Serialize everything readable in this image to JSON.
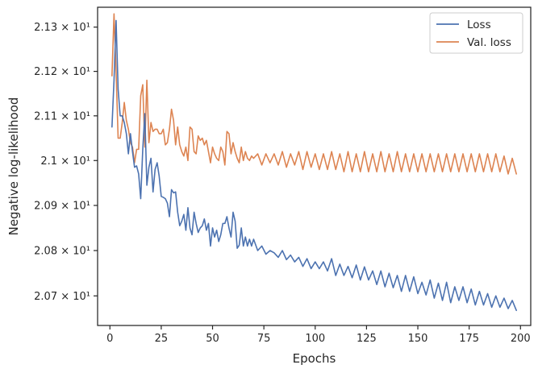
{
  "chart_data": {
    "type": "line",
    "xlabel": "Epochs",
    "ylabel": "Negative log-likelihood",
    "xlim": [
      -6,
      205
    ],
    "ylim": [
      20.635,
      21.345
    ],
    "yscale": "log",
    "grid": false,
    "legend_position": "top-right",
    "xticks": [
      {
        "value": 0,
        "label": "0"
      },
      {
        "value": 25,
        "label": "25"
      },
      {
        "value": 50,
        "label": "50"
      },
      {
        "value": 75,
        "label": "75"
      },
      {
        "value": 100,
        "label": "100"
      },
      {
        "value": 125,
        "label": "125"
      },
      {
        "value": 150,
        "label": "150"
      },
      {
        "value": 175,
        "label": "175"
      },
      {
        "value": 200,
        "label": "200"
      }
    ],
    "yticks": [
      {
        "value": 20.7,
        "label": "2.07 × 10¹"
      },
      {
        "value": 20.8,
        "label": "2.08 × 10¹"
      },
      {
        "value": 20.9,
        "label": "2.09 × 10¹"
      },
      {
        "value": 21.0,
        "label": "2.1 × 10¹"
      },
      {
        "value": 21.1,
        "label": "2.11 × 10¹"
      },
      {
        "value": 21.2,
        "label": "2.12 × 10¹"
      },
      {
        "value": 21.3,
        "label": "2.13 × 10¹"
      }
    ],
    "series": [
      {
        "name": "Loss",
        "color": "#4c72b0",
        "x": [
          1,
          2,
          3,
          4,
          5,
          6,
          7,
          8,
          9,
          10,
          11,
          12,
          13,
          14,
          15,
          16,
          17,
          18,
          19,
          20,
          21,
          22,
          23,
          24,
          25,
          26,
          27,
          28,
          29,
          30,
          31,
          32,
          33,
          34,
          35,
          36,
          37,
          38,
          39,
          40,
          41,
          42,
          43,
          44,
          45,
          46,
          47,
          48,
          49,
          50,
          51,
          52,
          53,
          54,
          55,
          56,
          57,
          58,
          59,
          60,
          61,
          62,
          63,
          64,
          65,
          66,
          67,
          68,
          69,
          70,
          72,
          74,
          76,
          78,
          80,
          82,
          84,
          86,
          88,
          90,
          92,
          94,
          96,
          98,
          100,
          102,
          104,
          106,
          108,
          110,
          112,
          114,
          116,
          118,
          120,
          122,
          124,
          126,
          128,
          130,
          132,
          134,
          136,
          138,
          140,
          142,
          144,
          146,
          148,
          150,
          152,
          154,
          156,
          158,
          160,
          162,
          164,
          166,
          168,
          170,
          172,
          174,
          176,
          178,
          180,
          182,
          184,
          186,
          188,
          190,
          192,
          194,
          196,
          198
        ],
        "values": [
          21.075,
          21.18,
          21.315,
          21.16,
          21.1,
          21.1,
          21.085,
          21.06,
          21.015,
          21.06,
          21.02,
          20.985,
          20.988,
          20.97,
          20.915,
          21.025,
          21.105,
          20.945,
          20.985,
          21.005,
          20.93,
          20.98,
          20.995,
          20.965,
          20.92,
          20.918,
          20.915,
          20.905,
          20.875,
          20.935,
          20.928,
          20.93,
          20.885,
          20.855,
          20.865,
          20.88,
          20.845,
          20.895,
          20.85,
          20.835,
          20.885,
          20.86,
          20.84,
          20.85,
          20.855,
          20.87,
          20.845,
          20.86,
          20.81,
          20.85,
          20.83,
          20.845,
          20.82,
          20.835,
          20.86,
          20.86,
          20.875,
          20.85,
          20.83,
          20.885,
          20.865,
          20.805,
          20.812,
          20.85,
          20.81,
          20.83,
          20.81,
          20.825,
          20.81,
          20.825,
          20.8,
          20.81,
          20.792,
          20.8,
          20.795,
          20.785,
          20.8,
          20.78,
          20.79,
          20.775,
          20.785,
          20.765,
          20.782,
          20.76,
          20.775,
          20.76,
          20.775,
          20.755,
          20.782,
          20.745,
          20.77,
          20.745,
          20.765,
          20.74,
          20.768,
          20.735,
          20.764,
          20.735,
          20.755,
          20.725,
          20.755,
          20.72,
          20.75,
          20.718,
          20.745,
          20.71,
          20.745,
          20.71,
          20.742,
          20.705,
          20.73,
          20.702,
          20.735,
          20.695,
          20.728,
          20.69,
          20.73,
          20.685,
          20.72,
          20.69,
          20.72,
          20.685,
          20.715,
          20.68,
          20.71,
          20.68,
          20.705,
          20.675,
          20.7,
          20.675,
          20.695,
          20.672,
          20.69,
          20.668
        ]
      },
      {
        "name": "Val. loss",
        "color": "#dd8452",
        "x": [
          1,
          2,
          3,
          4,
          5,
          6,
          7,
          8,
          9,
          10,
          11,
          12,
          13,
          14,
          15,
          16,
          17,
          18,
          19,
          20,
          21,
          22,
          23,
          24,
          25,
          26,
          27,
          28,
          29,
          30,
          31,
          32,
          33,
          34,
          35,
          36,
          37,
          38,
          39,
          40,
          41,
          42,
          43,
          44,
          45,
          46,
          47,
          48,
          49,
          50,
          51,
          52,
          53,
          54,
          55,
          56,
          57,
          58,
          59,
          60,
          61,
          62,
          63,
          64,
          65,
          66,
          67,
          68,
          69,
          70,
          72,
          74,
          76,
          78,
          80,
          82,
          84,
          86,
          88,
          90,
          92,
          94,
          96,
          98,
          100,
          102,
          104,
          106,
          108,
          110,
          112,
          114,
          116,
          118,
          120,
          122,
          124,
          126,
          128,
          130,
          132,
          134,
          136,
          138,
          140,
          142,
          144,
          146,
          148,
          150,
          152,
          154,
          156,
          158,
          160,
          162,
          164,
          166,
          168,
          170,
          172,
          174,
          176,
          178,
          180,
          182,
          184,
          186,
          188,
          190,
          192,
          194,
          196,
          198
        ],
        "values": [
          21.19,
          21.33,
          21.2,
          21.05,
          21.05,
          21.085,
          21.13,
          21.09,
          21.07,
          21.04,
          21.03,
          20.995,
          21.025,
          21.025,
          21.145,
          21.17,
          21.03,
          21.18,
          21.04,
          21.085,
          21.065,
          21.07,
          21.07,
          21.06,
          21.06,
          21.07,
          21.035,
          21.04,
          21.07,
          21.115,
          21.09,
          21.035,
          21.075,
          21.035,
          21.02,
          21.01,
          21.03,
          21.0,
          21.075,
          21.07,
          21.02,
          21.015,
          21.055,
          21.045,
          21.05,
          21.035,
          21.045,
          21.02,
          20.995,
          21.03,
          21.015,
          21.005,
          21.0,
          21.03,
          21.02,
          20.99,
          21.065,
          21.06,
          21.015,
          21.04,
          21.02,
          21.005,
          20.995,
          21.03,
          21.0,
          21.02,
          21.005,
          21.0,
          21.01,
          21.005,
          21.015,
          20.99,
          21.015,
          20.995,
          21.015,
          20.99,
          21.02,
          20.985,
          21.015,
          20.99,
          21.02,
          20.98,
          21.02,
          20.985,
          21.015,
          20.98,
          21.015,
          20.98,
          21.02,
          20.98,
          21.015,
          20.975,
          21.02,
          20.975,
          21.015,
          20.975,
          21.02,
          20.975,
          21.015,
          20.975,
          21.02,
          20.975,
          21.015,
          20.975,
          21.02,
          20.975,
          21.015,
          20.975,
          21.015,
          20.975,
          21.015,
          20.975,
          21.015,
          20.975,
          21.015,
          20.975,
          21.015,
          20.975,
          21.015,
          20.975,
          21.015,
          20.975,
          21.015,
          20.975,
          21.015,
          20.975,
          21.015,
          20.975,
          21.015,
          20.975,
          21.01,
          20.97,
          21.005,
          20.97
        ]
      }
    ]
  }
}
